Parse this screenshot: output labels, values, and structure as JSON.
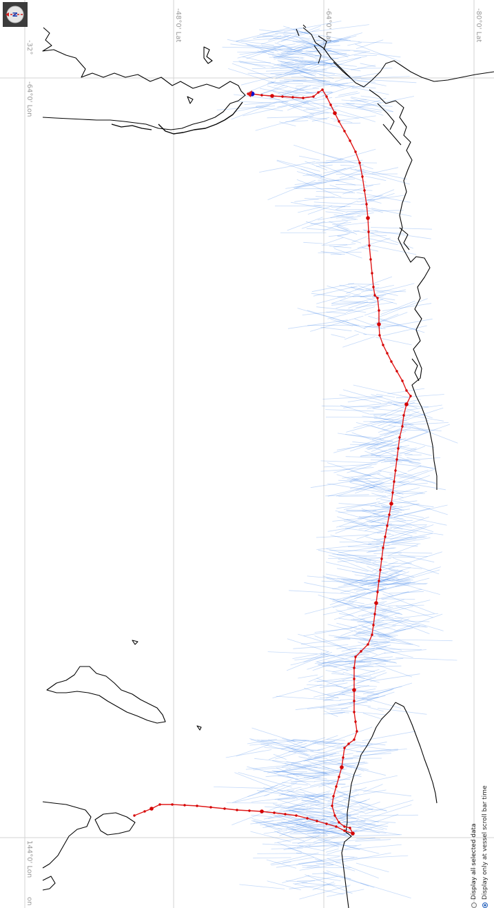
{
  "map": {
    "grid_labels": {
      "lat_top_left": "-32°",
      "lat_48": "-48°0' Lat",
      "lat_64": "-64°0' Lat",
      "lat_80": "-80°0' Lat",
      "lon_64": "-64°0' Lon",
      "lon_144": "144°0' Lon",
      "lon_bottom_left": "on"
    },
    "colors": {
      "track": "#e01818",
      "track_dots": "#d40000",
      "vessel_marker": "#1010d0",
      "vectors": "#2e7be8",
      "coastline": "#000000",
      "grid": "#d3d3d3"
    },
    "legend_icons": [
      "compass-icon"
    ]
  },
  "compass": {
    "label": "N"
  },
  "radio_options": [
    {
      "label": "Display all selected data",
      "checked": false
    },
    {
      "label": "Display only at vessel scroll bar time",
      "checked": true
    }
  ]
}
